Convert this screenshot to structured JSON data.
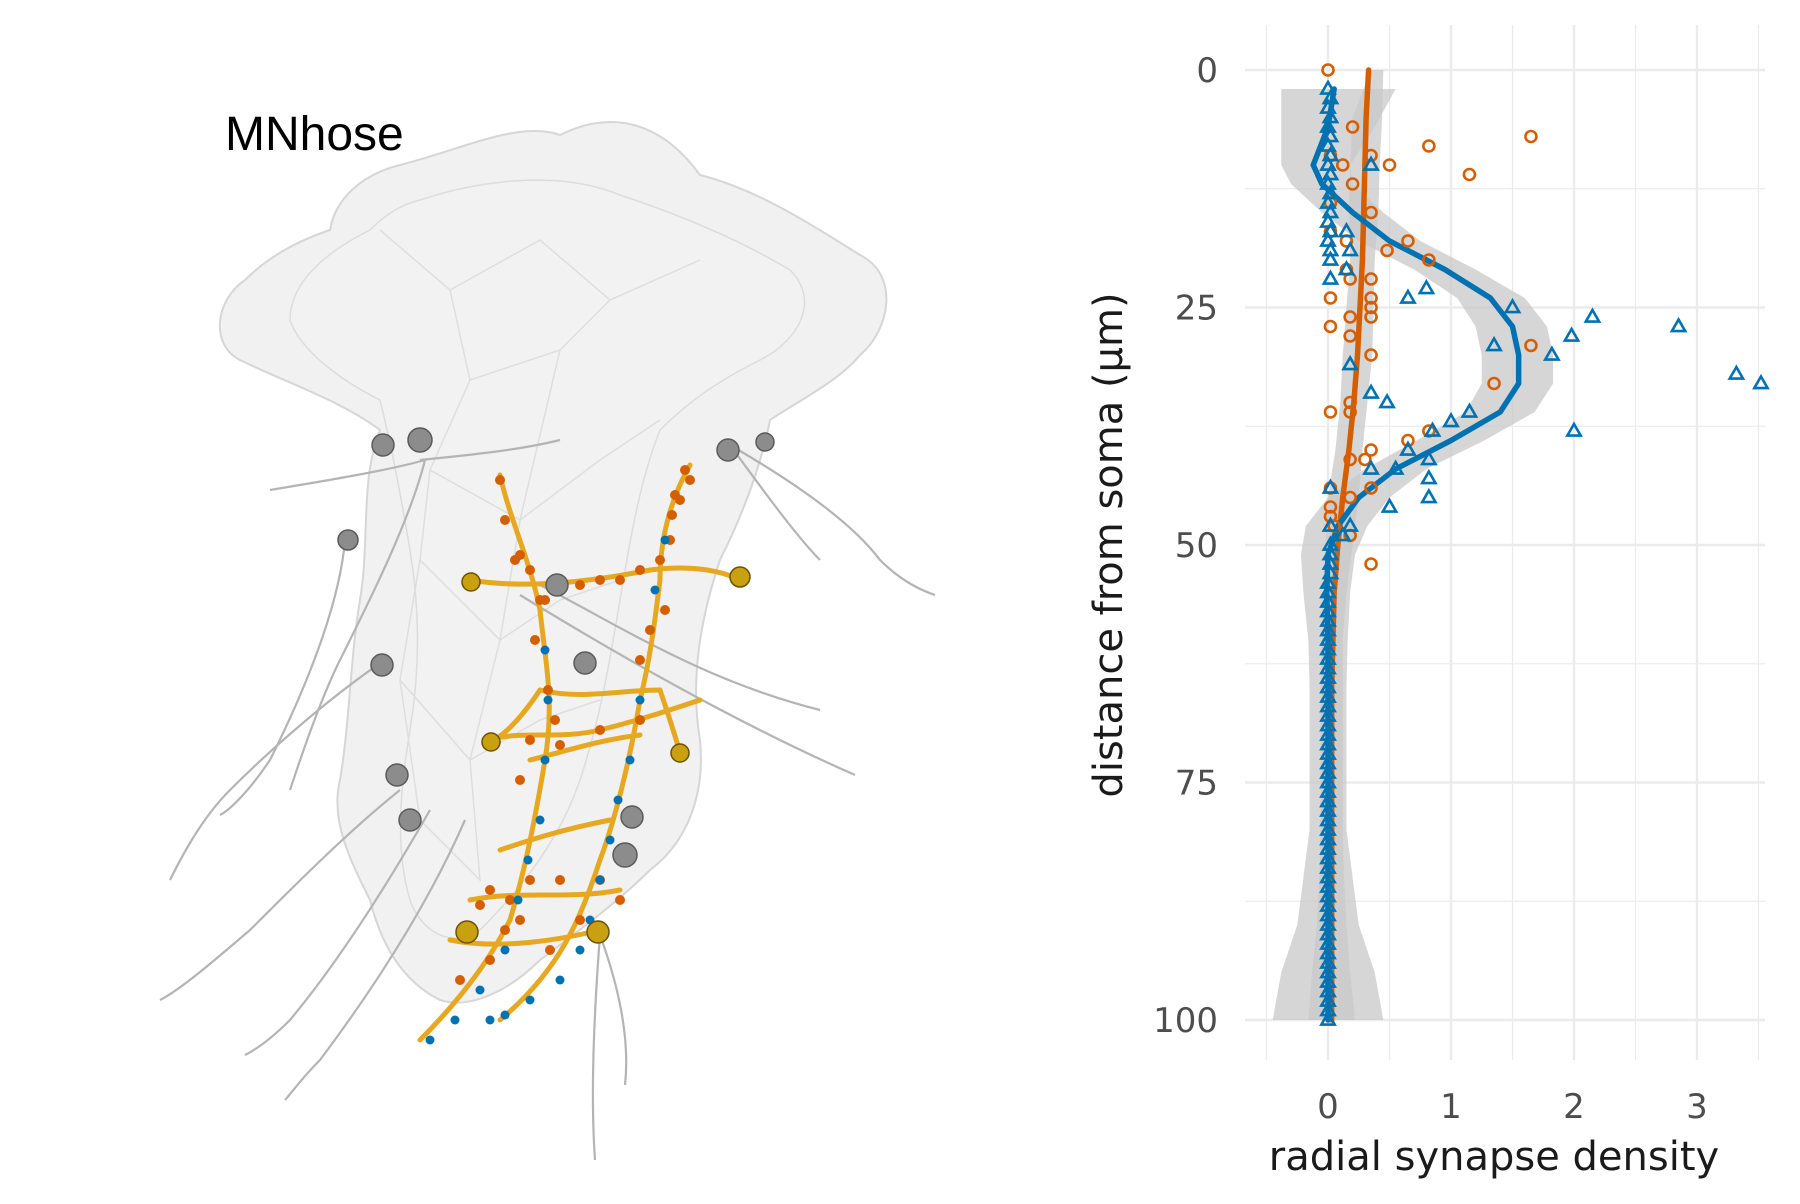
{
  "neuron_panel": {
    "label": "MNhose"
  },
  "colors": {
    "presynapse": "#d55e00",
    "postsynapse": "#0072b2",
    "skeleton": "#e6a820",
    "confidence": "#c8c8c8",
    "grid": "#ebebeb",
    "mesh": "#e4e4e4",
    "tracts": "#b4b4b4"
  },
  "chart_data": {
    "type": "scatter",
    "orientation": "y-reversed",
    "xlabel": "radial synapse density",
    "ylabel": "distance from soma (μm)",
    "xlim": [
      -0.5,
      3.55
    ],
    "ylim": [
      0,
      105
    ],
    "x_ticks": [
      0,
      1,
      2,
      3
    ],
    "y_ticks": [
      0,
      25,
      50,
      75,
      100
    ],
    "grid": true,
    "legend": "none",
    "series": [
      {
        "marker": "circle",
        "color": "#d55e00",
        "points": [
          [
            0,
            0
          ],
          [
            0.2,
            6
          ],
          [
            1.65,
            7
          ],
          [
            0.82,
            8
          ],
          [
            0.02,
            9
          ],
          [
            0.35,
            9
          ],
          [
            0.5,
            10
          ],
          [
            0.12,
            10
          ],
          [
            1.15,
            11
          ],
          [
            0.2,
            12
          ],
          [
            0.02,
            14
          ],
          [
            0.35,
            15
          ],
          [
            0.02,
            17
          ],
          [
            0.15,
            18
          ],
          [
            0.65,
            18
          ],
          [
            0.48,
            19
          ],
          [
            0.82,
            20
          ],
          [
            0.15,
            21
          ],
          [
            0.18,
            22
          ],
          [
            0.35,
            22
          ],
          [
            0.02,
            24
          ],
          [
            0.35,
            24
          ],
          [
            0.35,
            25
          ],
          [
            0.18,
            26
          ],
          [
            0.35,
            26
          ],
          [
            0.02,
            27
          ],
          [
            0.18,
            28
          ],
          [
            1.65,
            29
          ],
          [
            0.35,
            30
          ],
          [
            1.35,
            33
          ],
          [
            0.18,
            35
          ],
          [
            0.02,
            36
          ],
          [
            0.18,
            36
          ],
          [
            0.82,
            38
          ],
          [
            0.65,
            39
          ],
          [
            0.35,
            40
          ],
          [
            0.3,
            41
          ],
          [
            0.18,
            41
          ],
          [
            0.02,
            44
          ],
          [
            0.35,
            44
          ],
          [
            0.18,
            45
          ],
          [
            0.02,
            46
          ],
          [
            0.02,
            47
          ],
          [
            0.05,
            48
          ],
          [
            0.18,
            49
          ],
          [
            0.35,
            52
          ]
        ],
        "fit": [
          [
            0.33,
            0
          ],
          [
            0.31,
            5
          ],
          [
            0.3,
            10
          ],
          [
            0.29,
            15
          ],
          [
            0.28,
            20
          ],
          [
            0.26,
            25
          ],
          [
            0.24,
            30
          ],
          [
            0.21,
            35
          ],
          [
            0.17,
            40
          ],
          [
            0.12,
            45
          ],
          [
            0.08,
            50
          ],
          [
            0.05,
            55
          ],
          [
            0.04,
            60
          ],
          [
            0.03,
            65
          ],
          [
            0.03,
            70
          ],
          [
            0.03,
            75
          ],
          [
            0.03,
            80
          ],
          [
            0.03,
            85
          ],
          [
            0.03,
            90
          ],
          [
            0.03,
            95
          ],
          [
            0.03,
            100
          ]
        ],
        "band": [
          [
            0.33,
            0.35,
            0.45
          ],
          [
            0.32,
            0.2,
            0.44
          ],
          [
            0.3,
            0.18,
            0.42
          ],
          [
            0.29,
            0.17,
            0.41
          ],
          [
            0.28,
            0.18,
            0.38
          ],
          [
            0.26,
            0.15,
            0.37
          ],
          [
            0.24,
            0.12,
            0.36
          ],
          [
            0.21,
            0.1,
            0.32
          ],
          [
            0.17,
            0.06,
            0.28
          ],
          [
            0.12,
            0.0,
            0.25
          ],
          [
            0.08,
            -0.02,
            0.2
          ],
          [
            0.05,
            -0.04,
            0.15
          ],
          [
            0.04,
            -0.05,
            0.12
          ],
          [
            0.03,
            -0.06,
            0.12
          ],
          [
            0.03,
            -0.06,
            0.12
          ],
          [
            0.03,
            -0.06,
            0.12
          ],
          [
            0.03,
            -0.06,
            0.12
          ],
          [
            0.03,
            -0.07,
            0.13
          ],
          [
            0.03,
            -0.09,
            0.15
          ],
          [
            0.03,
            -0.13,
            0.18
          ],
          [
            0.03,
            -0.16,
            0.22
          ]
        ]
      },
      {
        "marker": "triangle",
        "color": "#0072b2",
        "points": [
          [
            0,
            2
          ],
          [
            0.02,
            3
          ],
          [
            0,
            4
          ],
          [
            0.02,
            5
          ],
          [
            0,
            6
          ],
          [
            0.02,
            7
          ],
          [
            0,
            8
          ],
          [
            0.02,
            9
          ],
          [
            0,
            10
          ],
          [
            0.02,
            11
          ],
          [
            0.35,
            10
          ],
          [
            0,
            12
          ],
          [
            0.02,
            13
          ],
          [
            0,
            14
          ],
          [
            0.02,
            15
          ],
          [
            0,
            16
          ],
          [
            0.02,
            17
          ],
          [
            0.15,
            17
          ],
          [
            0,
            18
          ],
          [
            0.02,
            19
          ],
          [
            0.18,
            19
          ],
          [
            0.02,
            20
          ],
          [
            0.15,
            21
          ],
          [
            0.02,
            22
          ],
          [
            0.8,
            23
          ],
          [
            0.65,
            24
          ],
          [
            1.5,
            25
          ],
          [
            2.15,
            26
          ],
          [
            2.85,
            27
          ],
          [
            1.98,
            28
          ],
          [
            1.35,
            29
          ],
          [
            1.82,
            30
          ],
          [
            0.18,
            31
          ],
          [
            3.32,
            32
          ],
          [
            3.52,
            33
          ],
          [
            0.35,
            34
          ],
          [
            0.48,
            35
          ],
          [
            1.15,
            36
          ],
          [
            1.0,
            37
          ],
          [
            2.0,
            38
          ],
          [
            0.85,
            38
          ],
          [
            0.65,
            40
          ],
          [
            0.82,
            41
          ],
          [
            0.55,
            42
          ],
          [
            0.35,
            42
          ],
          [
            0.82,
            43
          ],
          [
            0.02,
            44
          ],
          [
            0.82,
            45
          ],
          [
            0.5,
            46
          ],
          [
            0.02,
            48
          ],
          [
            0.18,
            48
          ],
          [
            0.12,
            49
          ],
          [
            0.02,
            50
          ],
          [
            0.02,
            51
          ],
          [
            0.02,
            52
          ],
          [
            0.02,
            53
          ],
          [
            0,
            54
          ],
          [
            0,
            55
          ],
          [
            0,
            56
          ],
          [
            0,
            57
          ],
          [
            0,
            58
          ],
          [
            0,
            59
          ],
          [
            0,
            60
          ],
          [
            0,
            61
          ],
          [
            0,
            62
          ],
          [
            0,
            63
          ],
          [
            0,
            64
          ],
          [
            0,
            65
          ],
          [
            0,
            66
          ],
          [
            0,
            67
          ],
          [
            0,
            68
          ],
          [
            0,
            69
          ],
          [
            0,
            70
          ],
          [
            0,
            71
          ],
          [
            0,
            72
          ],
          [
            0,
            73
          ],
          [
            0,
            74
          ],
          [
            0,
            75
          ],
          [
            0,
            76
          ],
          [
            0,
            77
          ],
          [
            0,
            78
          ],
          [
            0,
            79
          ],
          [
            0,
            80
          ],
          [
            0,
            81
          ],
          [
            0,
            82
          ],
          [
            0,
            83
          ],
          [
            0,
            84
          ],
          [
            0,
            85
          ],
          [
            0,
            86
          ],
          [
            0,
            87
          ],
          [
            0,
            88
          ],
          [
            0,
            89
          ],
          [
            0,
            90
          ],
          [
            0,
            91
          ],
          [
            0,
            92
          ],
          [
            0,
            93
          ],
          [
            0,
            94
          ],
          [
            0,
            95
          ],
          [
            0,
            96
          ],
          [
            0,
            97
          ],
          [
            0,
            98
          ],
          [
            0,
            99
          ],
          [
            0,
            100
          ]
        ],
        "fit": [
          [
            0.05,
            2
          ],
          [
            0.0,
            6
          ],
          [
            -0.12,
            10
          ],
          [
            -0.05,
            12
          ],
          [
            0.2,
            15
          ],
          [
            0.5,
            18
          ],
          [
            0.95,
            21
          ],
          [
            1.32,
            24
          ],
          [
            1.5,
            27
          ],
          [
            1.55,
            30
          ],
          [
            1.55,
            33
          ],
          [
            1.4,
            36
          ],
          [
            1.0,
            39
          ],
          [
            0.55,
            42
          ],
          [
            0.25,
            45
          ],
          [
            0.08,
            48
          ],
          [
            0.0,
            51
          ],
          [
            -0.01,
            55
          ],
          [
            0.0,
            60
          ],
          [
            0.0,
            65
          ],
          [
            0.0,
            70
          ],
          [
            0.0,
            75
          ],
          [
            0.0,
            80
          ],
          [
            0.0,
            85
          ],
          [
            0.0,
            90
          ],
          [
            0.0,
            95
          ],
          [
            0.0,
            100
          ]
        ],
        "band": [
          [
            0.05,
            -0.38,
            0.55
          ],
          [
            0.0,
            -0.38,
            0.38
          ],
          [
            -0.12,
            -0.38,
            0.18
          ],
          [
            -0.05,
            -0.3,
            0.2
          ],
          [
            0.2,
            -0.05,
            0.45
          ],
          [
            0.5,
            0.25,
            0.75
          ],
          [
            0.95,
            0.7,
            1.2
          ],
          [
            1.32,
            1.05,
            1.6
          ],
          [
            1.5,
            1.2,
            1.78
          ],
          [
            1.55,
            1.25,
            1.83
          ],
          [
            1.55,
            1.25,
            1.83
          ],
          [
            1.4,
            1.12,
            1.68
          ],
          [
            1.0,
            0.72,
            1.27
          ],
          [
            0.55,
            0.3,
            0.8
          ],
          [
            0.25,
            0.0,
            0.5
          ],
          [
            0.08,
            -0.18,
            0.32
          ],
          [
            0.0,
            -0.22,
            0.22
          ],
          [
            -0.01,
            -0.2,
            0.18
          ],
          [
            0.0,
            -0.16,
            0.16
          ],
          [
            0.0,
            -0.15,
            0.15
          ],
          [
            0.0,
            -0.15,
            0.15
          ],
          [
            0.0,
            -0.15,
            0.15
          ],
          [
            0.0,
            -0.15,
            0.15
          ],
          [
            0.0,
            -0.2,
            0.2
          ],
          [
            0.0,
            -0.25,
            0.25
          ],
          [
            0.0,
            -0.38,
            0.38
          ],
          [
            0.0,
            -0.45,
            0.45
          ]
        ]
      }
    ]
  }
}
